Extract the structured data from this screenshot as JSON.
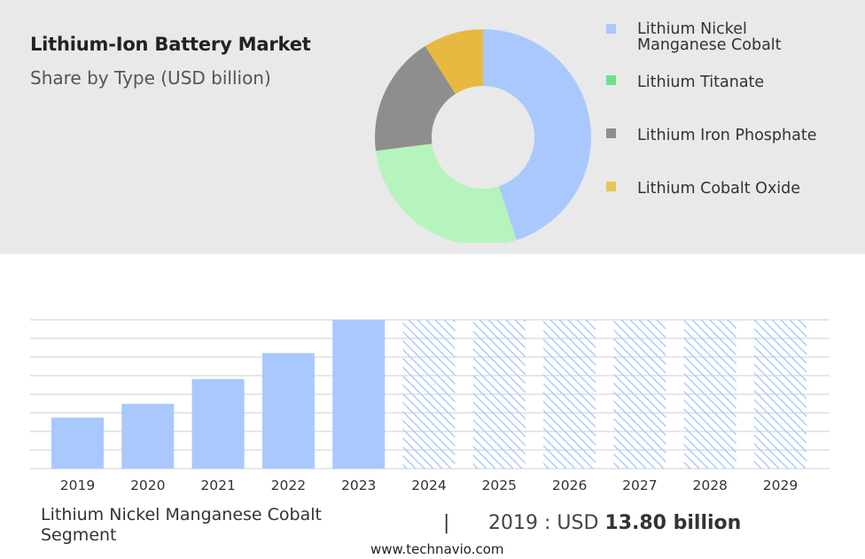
{
  "title": "Lithium-Ion Battery Market",
  "subtitle": "Share by Type (USD billion)",
  "chart_data": [
    {
      "type": "pie",
      "variant": "donut",
      "slices": [
        {
          "label": "Lithium Nickel Manganese Cobalt",
          "share": 0.45,
          "color": "#a9c8fd"
        },
        {
          "label": "Lithium Titanate",
          "share": 0.28,
          "color": "#b5f4bd"
        },
        {
          "label": "Lithium Iron Phosphate",
          "share": 0.18,
          "color": "#8e8e8e"
        },
        {
          "label": "Lithium Cobalt Oxide",
          "share": 0.09,
          "color": "#e8b941"
        }
      ],
      "legend_position": "right",
      "legend_colors": [
        "#a9c8fd",
        "#6fe08a",
        "#8e8e8e",
        "#e8c552"
      ]
    },
    {
      "type": "bar",
      "categories": [
        "2019",
        "2020",
        "2021",
        "2022",
        "2023",
        "2024",
        "2025",
        "2026",
        "2027",
        "2028",
        "2029"
      ],
      "values": [
        13.8,
        17.5,
        24.2,
        31.2,
        40.2,
        null,
        null,
        null,
        null,
        null,
        null
      ],
      "forecast_categories": [
        "2024",
        "2025",
        "2026",
        "2027",
        "2028",
        "2029"
      ],
      "forecast_style": "hatched",
      "bar_color": "#a9c8fd",
      "ylim": [
        0,
        40.2
      ],
      "grid": true,
      "xlabel": "",
      "ylabel": ""
    }
  ],
  "footer": {
    "segment": "Lithium Nickel Manganese Cobalt Segment",
    "separator": "|",
    "stat_prefix": "2019 : USD ",
    "stat_value": "13.80 billion",
    "url": "www.technavio.com"
  }
}
